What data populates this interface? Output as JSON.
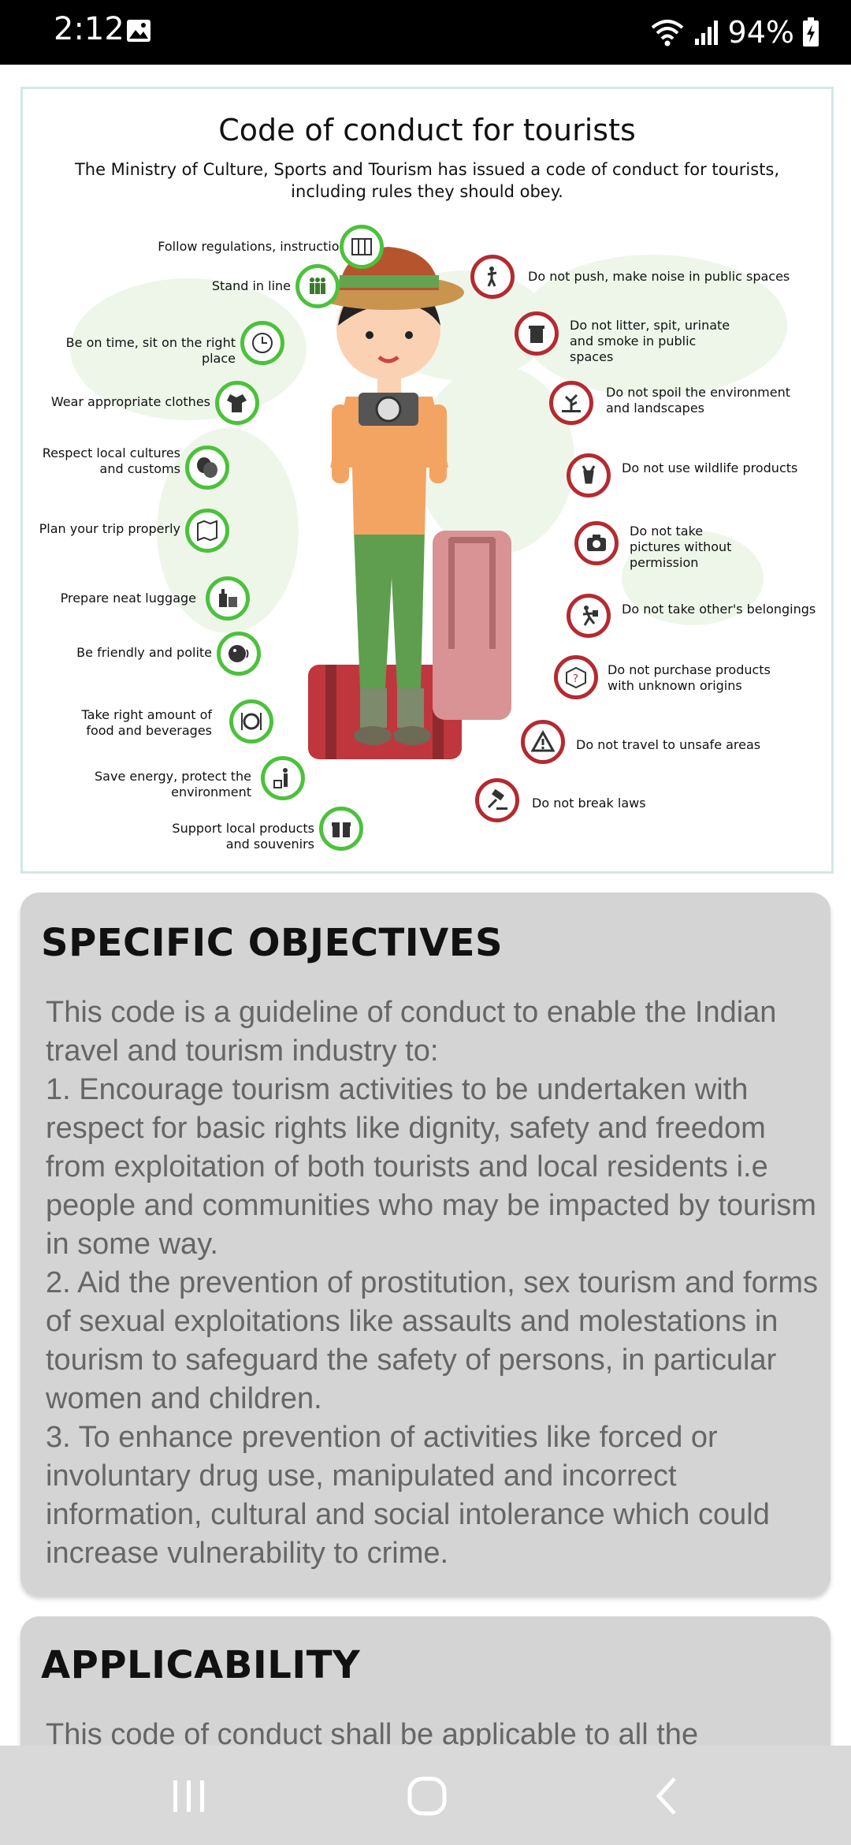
{
  "status_bar": {
    "time": "2:12",
    "battery": "94%"
  },
  "infographic": {
    "title": "Code of conduct for tourists",
    "subtitle": "The Ministry of Culture, Sports and Tourism has issued a code of conduct for tourists, including rules they should obey.",
    "dos": [
      {
        "label": "Follow regulations, instructions",
        "icon": "map-icon"
      },
      {
        "label": "Stand in line",
        "icon": "queue-icon"
      },
      {
        "label": "Be on time, sit on the right place",
        "icon": "clock-icon"
      },
      {
        "label": "Wear appropriate clothes",
        "icon": "clothes-icon"
      },
      {
        "label": "Respect local cultures and customs",
        "icon": "masks-icon"
      },
      {
        "label": "Plan your trip properly",
        "icon": "map-plan-icon"
      },
      {
        "label": "Prepare neat luggage",
        "icon": "luggage-icon"
      },
      {
        "label": "Be friendly and polite",
        "icon": "friendly-icon"
      },
      {
        "label": "Take right amount of food and beverages",
        "icon": "plate-icon"
      },
      {
        "label": "Save energy, protect the environment",
        "icon": "recycle-icon"
      },
      {
        "label": "Support local products and souvenirs",
        "icon": "gift-icon"
      }
    ],
    "donts": [
      {
        "label": "Do not push, make noise in public spaces",
        "icon": "noise-icon"
      },
      {
        "label": "Do not litter, spit, urinate and smoke in public spaces",
        "icon": "trash-icon"
      },
      {
        "label": "Do not spoil the environment and landscapes",
        "icon": "tree-icon"
      },
      {
        "label": "Do not use wildlife products",
        "icon": "deer-icon"
      },
      {
        "label": "Do not take pictures without permission",
        "icon": "camera-icon"
      },
      {
        "label": "Do not take other's belongings",
        "icon": "thief-icon"
      },
      {
        "label": "Do not purchase products with unknown origins",
        "icon": "box-icon"
      },
      {
        "label": "Do not travel to unsafe areas",
        "icon": "warning-icon"
      },
      {
        "label": "Do not break laws",
        "icon": "gavel-icon"
      }
    ],
    "colors": {
      "do_ring": "#4cc13c",
      "dont_ring": "#b42a30"
    }
  },
  "objectives": {
    "heading": "SPECIFIC OBJECTIVES",
    "body": "This code is a guideline of conduct to enable the Indian travel and tourism industry to:\n1. Encourage tourism activities to be undertaken with respect for basic rights like dignity, safety and freedom from exploitation of both tourists and local residents i.e people and communities who may be impacted by tourism in some way.\n2. Aid the prevention of prostitution, sex tourism and forms of sexual exploitations like assaults and molestations in tourism to safeguard the safety of persons, in particular women and children.\n3. To enhance prevention of activities like forced or involuntary drug use, manipulated and incorrect information, cultural and social intolerance which could increase vulnerability to crime."
  },
  "applicability": {
    "heading": "APPLICABILITY",
    "body_partial": "This code of conduct shall be applicable to all the"
  },
  "nav": {
    "buttons": [
      "recent-apps",
      "home",
      "back"
    ]
  }
}
